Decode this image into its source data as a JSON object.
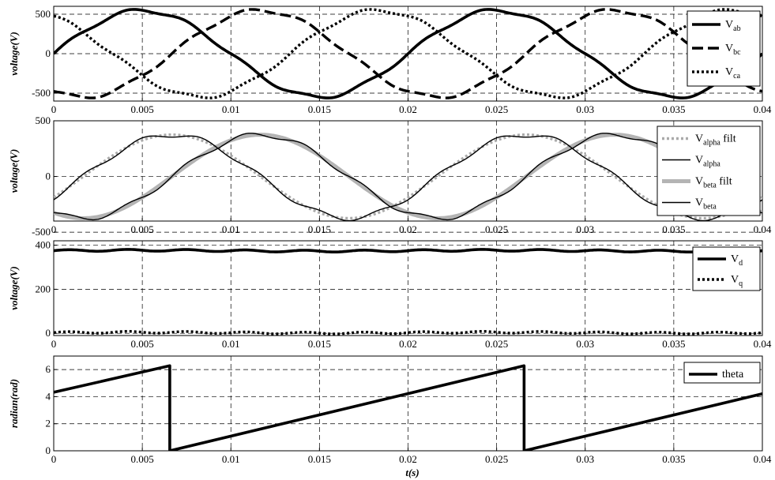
{
  "figure": {
    "xlabel": "t(s)"
  },
  "chart_data": [
    {
      "type": "line",
      "ylabel": "voltage(V)",
      "xlim": [
        0,
        0.04
      ],
      "ylim": [
        -600,
        600
      ],
      "xticks": [
        "0",
        "0.005",
        "0.01",
        "0.015",
        "0.02",
        "0.025",
        "0.03",
        "0.035",
        "0.04"
      ],
      "yticks": [
        -500,
        0,
        500
      ],
      "ytick_labels": [
        "-500",
        "0",
        "500"
      ],
      "grid": true,
      "legend_position": "top-right",
      "series": [
        {
          "name": "V",
          "sub": "ab",
          "style": "solid",
          "color": "#000000",
          "amplitude": 550,
          "frequency_hz": 50,
          "phase_deg": 0
        },
        {
          "name": "V",
          "sub": "bc",
          "style": "dashed",
          "color": "#000000",
          "amplitude": 550,
          "frequency_hz": 50,
          "phase_deg": -120
        },
        {
          "name": "V",
          "sub": "ca",
          "style": "dotted",
          "color": "#000000",
          "amplitude": 550,
          "frequency_hz": 50,
          "phase_deg": 120
        }
      ]
    },
    {
      "type": "line",
      "ylabel": "voltage(V)",
      "xlim": [
        0,
        0.04
      ],
      "ylim": [
        -400,
        500
      ],
      "xticks": [
        "0",
        "0.005",
        "0.01",
        "0.015",
        "0.02",
        "0.025",
        "0.03",
        "0.035",
        "0.04"
      ],
      "yticks": [
        -500,
        0,
        500
      ],
      "ytick_labels": [
        "-500",
        "0",
        "500"
      ],
      "grid": true,
      "legend_position": "top-right",
      "series": [
        {
          "name": "V",
          "sub": "alpha",
          "suffix": " filt",
          "style": "dotted",
          "color": "#aaaaaa",
          "amplitude": 375,
          "frequency_hz": 50,
          "phase_deg": -30
        },
        {
          "name": "V",
          "sub": "alpha",
          "suffix": "",
          "style": "thin",
          "color": "#000000",
          "amplitude": 375,
          "frequency_hz": 50,
          "phase_deg": -30
        },
        {
          "name": "V",
          "sub": "beta",
          "suffix": " filt",
          "style": "thick",
          "color": "#b4b4b4",
          "amplitude": 375,
          "frequency_hz": 50,
          "phase_deg": -120
        },
        {
          "name": "V",
          "sub": "beta",
          "suffix": "",
          "style": "thin",
          "color": "#000000",
          "amplitude": 375,
          "frequency_hz": 50,
          "phase_deg": -120
        }
      ]
    },
    {
      "type": "line",
      "ylabel": "voltage(V)",
      "xlim": [
        0,
        0.04
      ],
      "ylim": [
        -10,
        420
      ],
      "xticks": [
        "0",
        "0.005",
        "0.01",
        "0.015",
        "0.02",
        "0.025",
        "0.03",
        "0.035",
        "0.04"
      ],
      "yticks": [
        0,
        200,
        400
      ],
      "ytick_labels": [
        "0",
        "200",
        "400"
      ],
      "grid": true,
      "legend_position": "top-right",
      "series": [
        {
          "name": "V",
          "sub": "d",
          "style": "solid",
          "color": "#000000",
          "mean": 375
        },
        {
          "name": "V",
          "sub": "q",
          "style": "dotted",
          "color": "#000000",
          "mean": 3
        }
      ]
    },
    {
      "type": "line",
      "ylabel": "radian(rad)",
      "xlim": [
        0,
        0.04
      ],
      "ylim": [
        0,
        7
      ],
      "xticks": [
        "0",
        "0.005",
        "0.01",
        "0.015",
        "0.02",
        "0.025",
        "0.03",
        "0.035",
        "0.04"
      ],
      "yticks": [
        0,
        2,
        4,
        6
      ],
      "ytick_labels": [
        "0",
        "2",
        "4",
        "6"
      ],
      "grid": true,
      "legend_position": "top-right",
      "series": [
        {
          "name": "theta",
          "style": "solid",
          "color": "#000000",
          "points": [
            [
              0,
              4.32
            ],
            [
              0.00655,
              6.28
            ],
            [
              0.00655,
              0
            ],
            [
              0.02655,
              6.28
            ],
            [
              0.02655,
              0
            ],
            [
              0.04,
              4.21
            ]
          ]
        }
      ]
    }
  ]
}
